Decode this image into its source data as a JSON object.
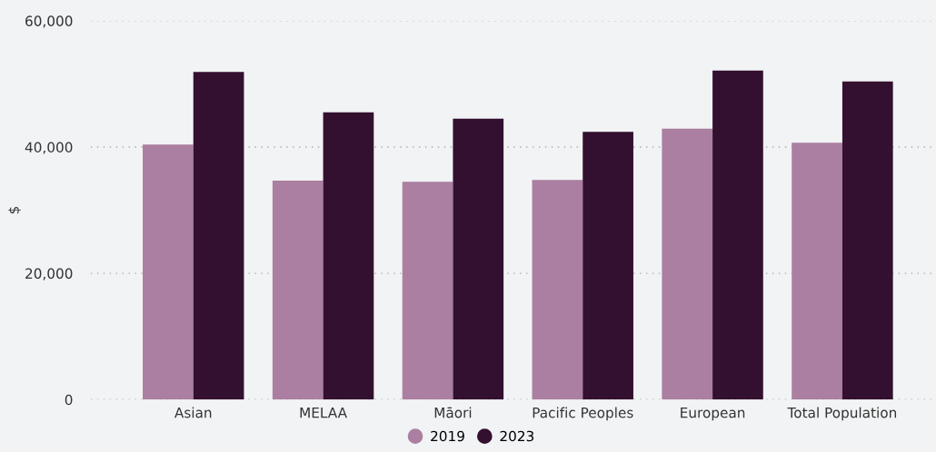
{
  "chart_data": {
    "type": "bar",
    "ylabel": "$",
    "categories": [
      "Asian",
      "MELAA",
      "Māori",
      "Pacific Peoples",
      "European",
      "Total Population"
    ],
    "series": [
      {
        "name": "2019",
        "color": "#ab7fa1",
        "values": [
          40400,
          34700,
          34500,
          34800,
          42900,
          40700
        ]
      },
      {
        "name": "2023",
        "color": "#341030",
        "values": [
          51900,
          45500,
          44500,
          42400,
          52100,
          50400
        ]
      }
    ],
    "ylim": [
      0,
      60000
    ],
    "yticks": [
      {
        "value": 0,
        "label": "0"
      },
      {
        "value": 20000,
        "label": "20,000"
      },
      {
        "value": 40000,
        "label": "40,000"
      },
      {
        "value": 60000,
        "label": "60,000"
      }
    ],
    "grid": "y",
    "legend": "bottom"
  }
}
